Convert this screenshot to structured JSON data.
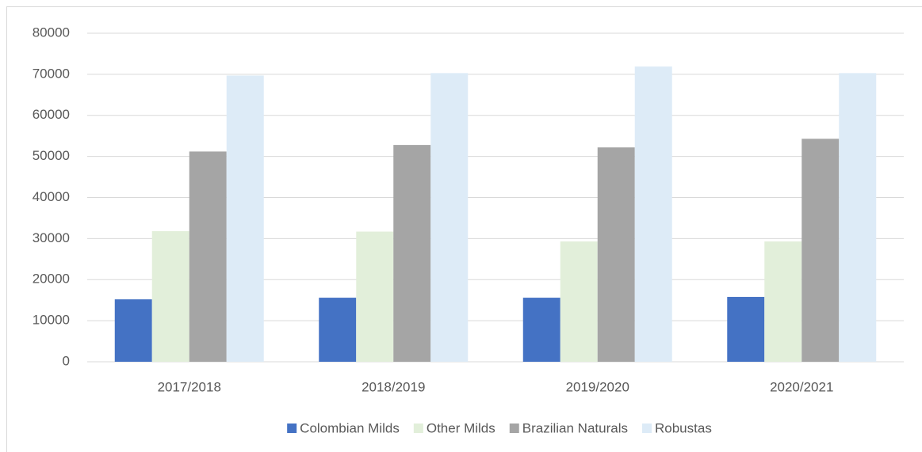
{
  "chart_data": {
    "type": "bar",
    "categories": [
      "2017/2018",
      "2018/2019",
      "2019/2020",
      "2020/2021"
    ],
    "series": [
      {
        "name": "Colombian Milds",
        "color": "#4472c4",
        "values": [
          15200,
          15600,
          15600,
          15800
        ]
      },
      {
        "name": "Other Milds",
        "color": "#e2efda",
        "values": [
          31800,
          31700,
          29300,
          29300
        ]
      },
      {
        "name": "Brazilian Naturals",
        "color": "#a5a5a5",
        "values": [
          51200,
          52800,
          52200,
          54300
        ]
      },
      {
        "name": "Robustas",
        "color": "#ddebf7",
        "values": [
          69700,
          70300,
          71900,
          70300
        ]
      }
    ],
    "ylim": [
      0,
      80000
    ],
    "yticks": [
      0,
      10000,
      20000,
      30000,
      40000,
      50000,
      60000,
      70000,
      80000
    ],
    "grid": true,
    "legend": "bottom"
  }
}
